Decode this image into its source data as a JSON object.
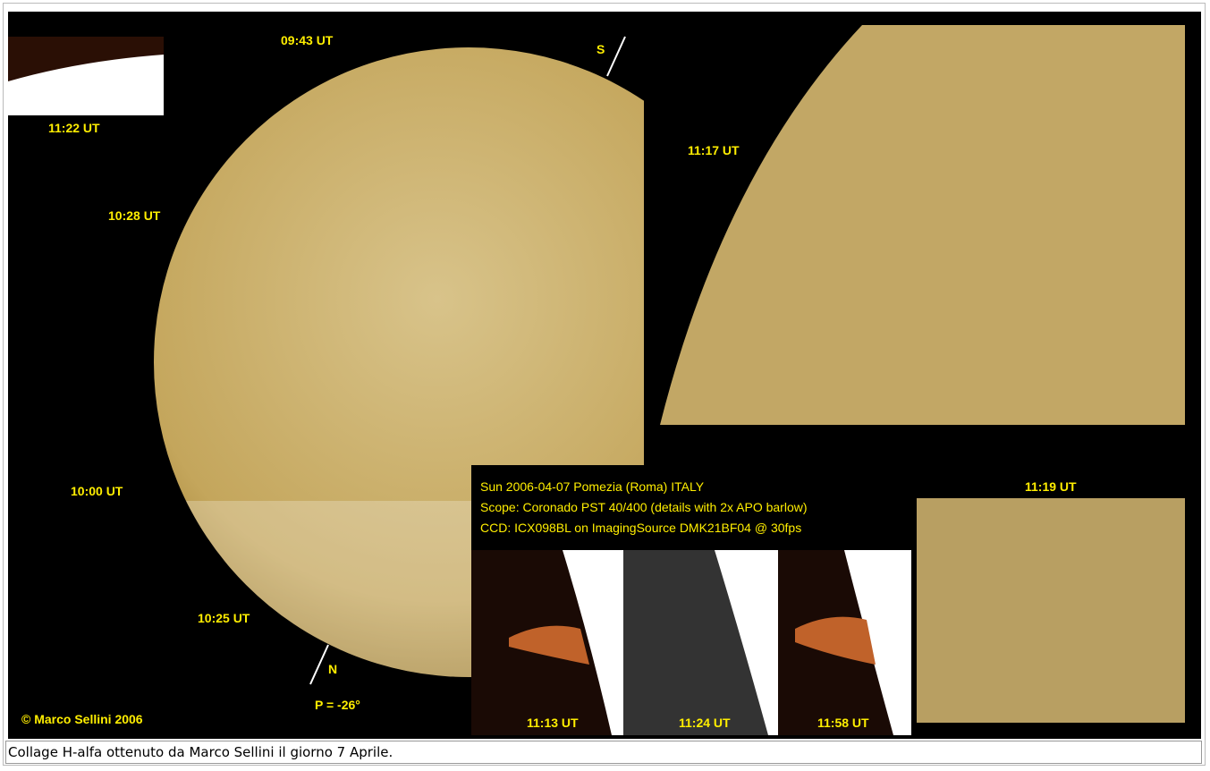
{
  "image": {
    "labels": [
      "09:43 UT",
      "S",
      "11:22 UT",
      "10:28 UT",
      "11:17 UT",
      "10:00 UT",
      "10:25 UT",
      "N",
      "P = -26°",
      "© Marco Sellini 2006",
      "11:19 UT",
      "11:13 UT",
      "11:24 UT",
      "11:58 UT"
    ],
    "info": [
      "Sun  2006-04-07  Pomezia (Roma) ITALY",
      "Scope: Coronado PST  40/400 (details with 2x APO barlow)",
      "CCD: ICX098BL on ImagingSource DMK21BF04   @  30fps"
    ]
  },
  "caption": "Collage H-alfa ottenuto da Marco Sellini il giorno 7 Aprile."
}
